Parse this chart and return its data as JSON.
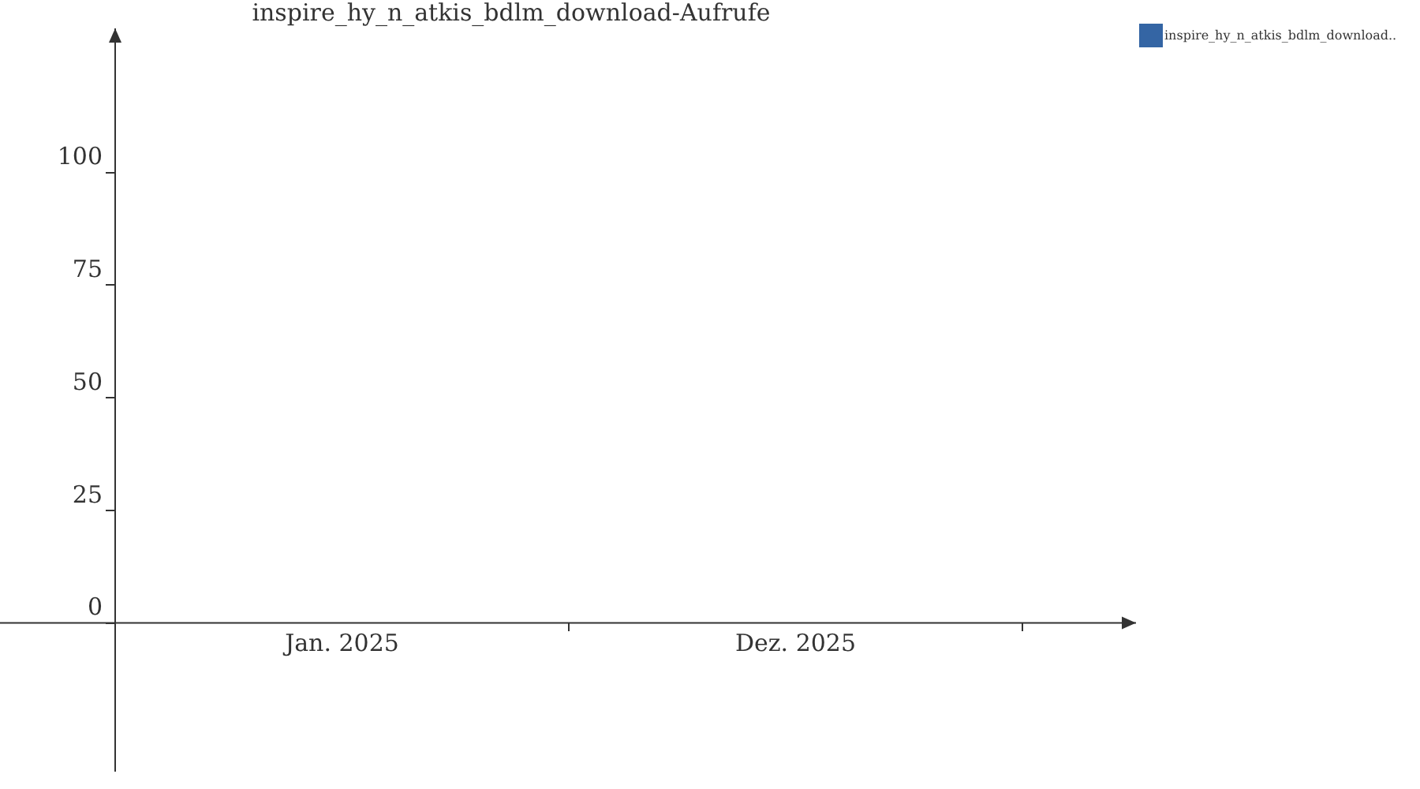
{
  "chart_data": {
    "type": "bar",
    "title": "inspire_hy_n_atkis_bdlm_download-Aufrufe",
    "categories": [
      "Jan. 2025",
      "Dez. 2025"
    ],
    "series": [
      {
        "name": "inspire_hy_n_atkis_bdlm_download..",
        "color": "#3465a4",
        "values": [
          0,
          0
        ]
      }
    ],
    "ylim": [
      -33,
      132
    ],
    "yticks": [
      0,
      25,
      50,
      75,
      100
    ],
    "grid": false,
    "legend": "top right"
  }
}
